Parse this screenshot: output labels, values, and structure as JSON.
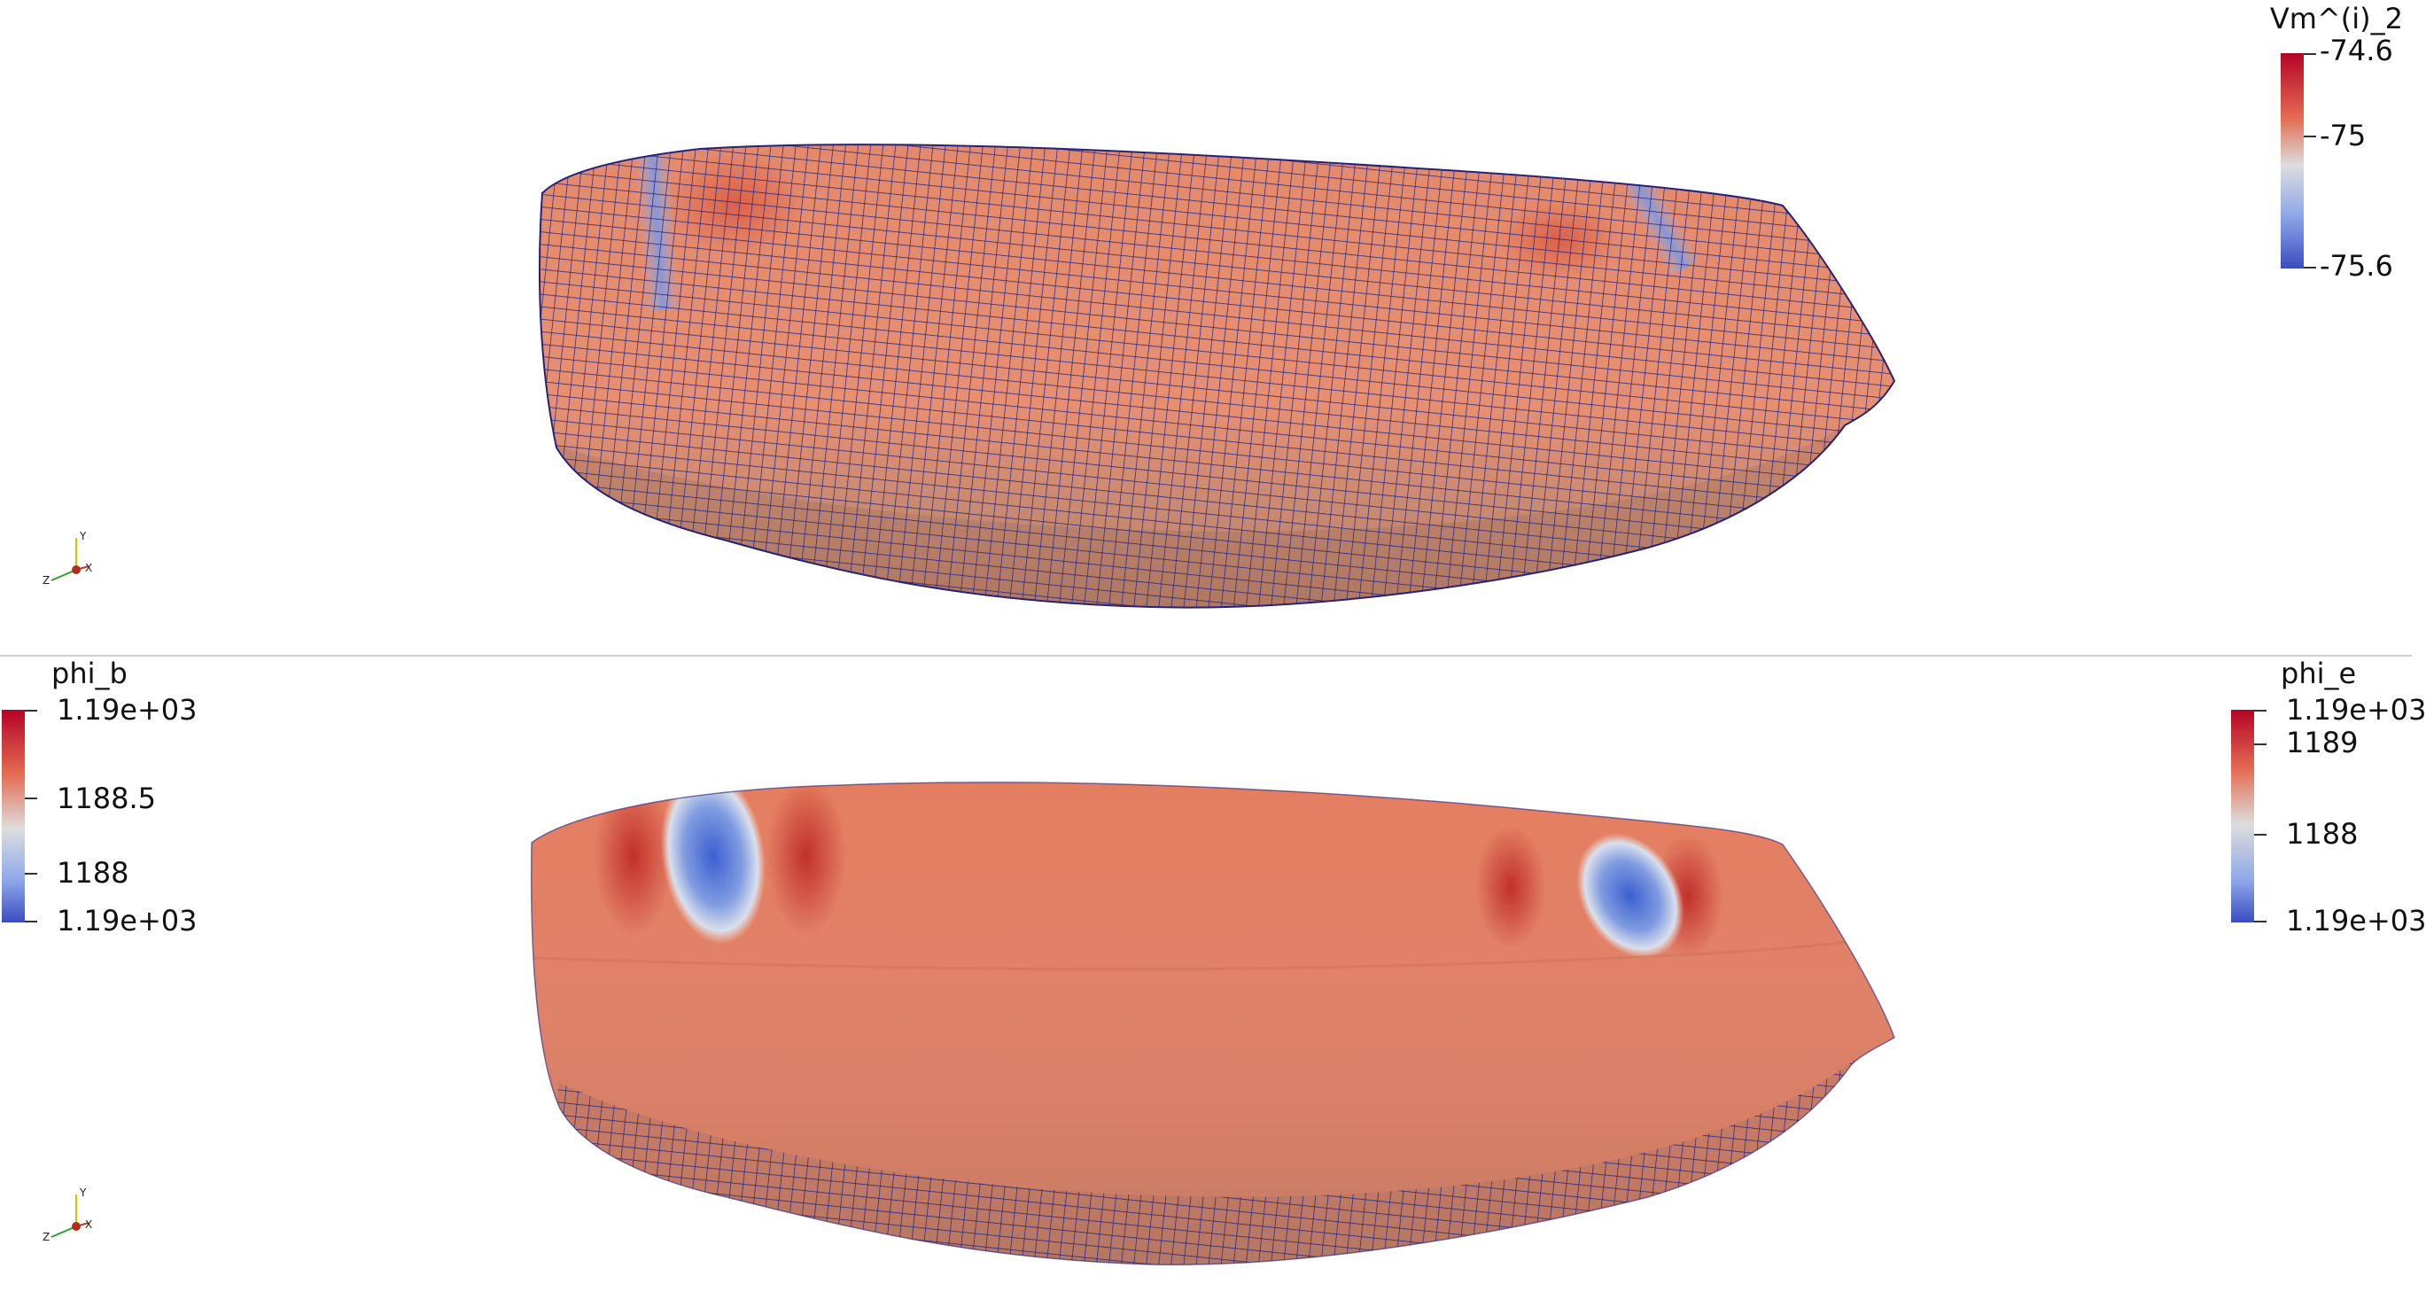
{
  "top_view": {
    "scalar_bar": {
      "title": "Vm^(i)_2",
      "labels": [
        "-74.6",
        "-75",
        "-75.6"
      ],
      "colors": {
        "max": "#b40426",
        "mid": "#dddddd",
        "min": "#3b4cc0"
      }
    },
    "orientation_axes": {
      "labels": [
        "Y",
        "Z",
        "X"
      ],
      "colors": {
        "y": "#d8d800",
        "z": "#2ca02c",
        "x": "#c0392b"
      }
    },
    "surface": {
      "base_color": "#e88a6c",
      "grid_color": "#1e1e8c",
      "mesh_lines": "shown"
    }
  },
  "bottom_view": {
    "scalar_bar_left": {
      "title": "phi_b",
      "labels": [
        "1.19e+03",
        "1188.5",
        "1188",
        "1.19e+03"
      ]
    },
    "scalar_bar_right": {
      "title": "phi_e",
      "labels": [
        "1.19e+03",
        "1189",
        "1188",
        "1.19e+03"
      ]
    },
    "orientation_axes": {
      "labels": [
        "Y",
        "Z",
        "X"
      ]
    },
    "surface": {
      "base_color": "#e27c5e",
      "hot_color": "#c8322e",
      "cold_color": "#4a6fd6"
    }
  }
}
